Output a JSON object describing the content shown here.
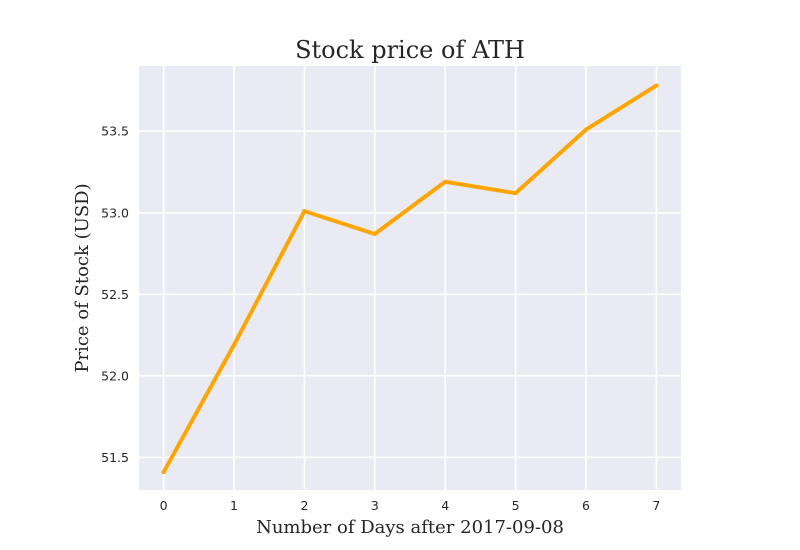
{
  "chart_data": {
    "type": "line",
    "title": "Stock price of ATH",
    "xlabel": "Number of Days after 2017-09-08",
    "ylabel": "Price of Stock (USD)",
    "x": [
      0,
      1,
      2,
      3,
      4,
      5,
      6,
      7
    ],
    "series": [
      {
        "values": [
          51.41,
          52.19,
          53.01,
          52.87,
          53.19,
          53.12,
          53.51,
          53.78
        ],
        "color": "#ffa500"
      }
    ],
    "xlim": [
      -0.35,
      7.35
    ],
    "ylim": [
      51.3,
      53.9
    ],
    "xticks": [
      "0",
      "1",
      "2",
      "3",
      "4",
      "5",
      "6",
      "7"
    ],
    "yticks": [
      "51.5",
      "52.0",
      "52.5",
      "53.0",
      "53.5"
    ],
    "grid": true,
    "background_color": "#eaeaf2",
    "grid_color": "#ffffff"
  }
}
